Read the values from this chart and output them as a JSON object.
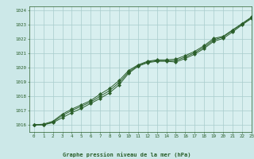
{
  "title": "Graphe pression niveau de la mer (hPa)",
  "background_color": "#cce8e8",
  "plot_bg_color": "#d8efef",
  "grid_color": "#a8cccc",
  "line_color": "#2a5e2a",
  "marker_color": "#2a5e2a",
  "xlim": [
    -0.5,
    23
  ],
  "ylim": [
    1015.5,
    1024.3
  ],
  "yticks": [
    1016,
    1017,
    1018,
    1019,
    1020,
    1021,
    1022,
    1023,
    1024
  ],
  "xticks": [
    0,
    1,
    2,
    3,
    4,
    5,
    6,
    7,
    8,
    9,
    10,
    11,
    12,
    13,
    14,
    15,
    16,
    17,
    18,
    19,
    20,
    21,
    22,
    23
  ],
  "series": [
    [
      1016.0,
      1016.0,
      1016.15,
      1016.5,
      1016.85,
      1017.15,
      1017.5,
      1017.85,
      1018.25,
      1018.8,
      1019.6,
      1020.1,
      1020.35,
      1020.45,
      1020.45,
      1020.4,
      1020.65,
      1020.95,
      1021.35,
      1021.85,
      1022.05,
      1022.5,
      1023.0,
      1023.45
    ],
    [
      1016.0,
      1016.0,
      1016.2,
      1016.65,
      1017.0,
      1017.3,
      1017.6,
      1018.0,
      1018.4,
      1018.95,
      1019.7,
      1020.15,
      1020.4,
      1020.5,
      1020.5,
      1020.5,
      1020.75,
      1021.05,
      1021.45,
      1021.95,
      1022.15,
      1022.6,
      1023.05,
      1023.5
    ],
    [
      1016.0,
      1016.05,
      1016.25,
      1016.75,
      1017.1,
      1017.4,
      1017.7,
      1018.15,
      1018.55,
      1019.1,
      1019.8,
      1020.2,
      1020.45,
      1020.55,
      1020.55,
      1020.6,
      1020.85,
      1021.15,
      1021.55,
      1022.05,
      1022.2,
      1022.65,
      1023.1,
      1023.55
    ]
  ]
}
